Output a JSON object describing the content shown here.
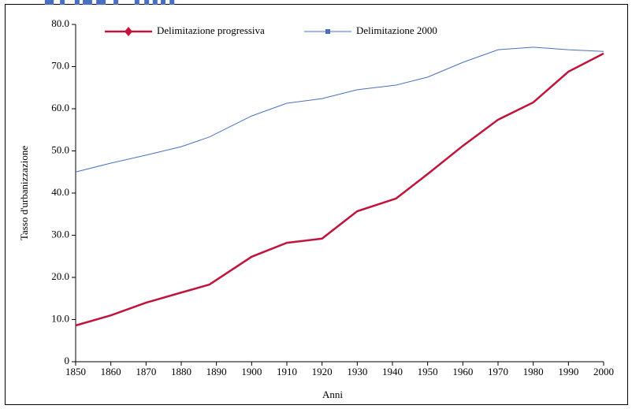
{
  "chart_data": {
    "type": "line",
    "x_label": "Anni",
    "y_label": "Tasso d'urbanizzazione",
    "x": [
      1850,
      1860,
      1870,
      1880,
      1888,
      1900,
      1910,
      1920,
      1930,
      1941,
      1950,
      1960,
      1970,
      1980,
      1990,
      2000
    ],
    "series": [
      {
        "name": "Delimitazione progressiva",
        "color": "#c0143c",
        "marker": "diamond",
        "values": [
          8.6,
          11.0,
          14.0,
          16.4,
          18.3,
          24.9,
          28.2,
          29.2,
          35.7,
          38.7,
          44.5,
          51.2,
          57.4,
          61.5,
          68.8,
          73.1
        ]
      },
      {
        "name": "Delimitazione 2000",
        "color": "#4a6fbf",
        "marker": "square",
        "values": [
          45.0,
          47.1,
          49.0,
          51.0,
          53.3,
          58.3,
          61.3,
          62.4,
          64.5,
          65.6,
          67.5,
          71.0,
          74.0,
          74.6,
          74.0,
          73.6
        ]
      }
    ],
    "xlim": [
      1850,
      2000
    ],
    "xticks": [
      1850,
      1860,
      1870,
      1880,
      1890,
      1900,
      1910,
      1920,
      1930,
      1940,
      1950,
      1960,
      1970,
      1980,
      1990,
      2000
    ],
    "ylim": [
      0,
      80
    ],
    "yticks": [
      0,
      {
        "value": 10,
        "label": "10.0"
      },
      {
        "value": 20,
        "label": "20.0"
      },
      {
        "value": 30,
        "label": "30.0"
      },
      {
        "value": 40,
        "label": "40.0"
      },
      {
        "value": 50,
        "label": "50.0"
      },
      {
        "value": 60,
        "label": "60.0"
      },
      {
        "value": 70,
        "label": "70.0"
      },
      {
        "value": 80,
        "label": "80.0"
      }
    ],
    "legend": "top"
  }
}
